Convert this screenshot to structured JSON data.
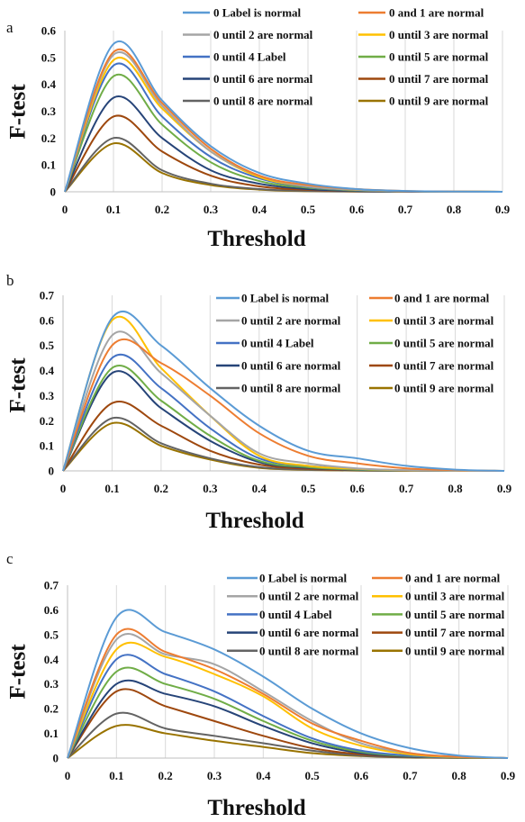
{
  "colors": {
    "s0": "#5b9bd5",
    "s1": "#ed7d31",
    "s2": "#a5a5a5",
    "s3": "#ffc000",
    "s4": "#4472c4",
    "s5": "#70ad47",
    "s6": "#264478",
    "s7": "#9e480e",
    "s8": "#636363",
    "s9": "#997300"
  },
  "chart_data": [
    {
      "type": "line",
      "panel": "a",
      "xlabel": "Threshold",
      "ylabel": "F-test",
      "xlim": [
        0,
        0.9
      ],
      "ylim": [
        0,
        0.6
      ],
      "xticks": [
        "0",
        "0.1",
        "0.2",
        "0.3",
        "0.4",
        "0.5",
        "0.6",
        "0.7",
        "0.8",
        "0.9"
      ],
      "yticks": [
        "0",
        "0.1",
        "0.2",
        "0.3",
        "0.4",
        "0.5",
        "0.6"
      ],
      "grid": "vertical",
      "legend_position": "top",
      "x": [
        0,
        0.1,
        0.2,
        0.3,
        0.4,
        0.5,
        0.6,
        0.7,
        0.8,
        0.9
      ],
      "series": [
        {
          "name": "0 Label is normal",
          "values": [
            0,
            0.55,
            0.34,
            0.17,
            0.07,
            0.03,
            0.01,
            0.003,
            0.001,
            0
          ]
        },
        {
          "name": "0 and 1 are normal",
          "values": [
            0,
            0.52,
            0.33,
            0.16,
            0.06,
            0.025,
            0.01,
            0.003,
            0.001,
            0
          ]
        },
        {
          "name": "0 until 2 are normal",
          "values": [
            0,
            0.51,
            0.32,
            0.15,
            0.06,
            0.02,
            0.008,
            0.002,
            0.001,
            0
          ]
        },
        {
          "name": "0 until 3 are normal",
          "values": [
            0,
            0.49,
            0.31,
            0.15,
            0.055,
            0.02,
            0.007,
            0.002,
            0.001,
            0
          ]
        },
        {
          "name": "0 until 4 Label",
          "values": [
            0,
            0.47,
            0.28,
            0.13,
            0.05,
            0.018,
            0.006,
            0.002,
            0.001,
            0
          ]
        },
        {
          "name": "0 until 5 are normal",
          "values": [
            0,
            0.43,
            0.25,
            0.11,
            0.04,
            0.015,
            0.005,
            0.002,
            0.001,
            0
          ]
        },
        {
          "name": "0 until 6 are normal",
          "values": [
            0,
            0.35,
            0.2,
            0.08,
            0.03,
            0.01,
            0.003,
            0.001,
            0,
            0
          ]
        },
        {
          "name": "0 until 7 are normal",
          "values": [
            0,
            0.28,
            0.15,
            0.06,
            0.02,
            0.007,
            0.002,
            0.001,
            0,
            0
          ]
        },
        {
          "name": "0 until 8 are normal",
          "values": [
            0,
            0.2,
            0.08,
            0.03,
            0.01,
            0.003,
            0.001,
            0,
            0,
            0
          ]
        },
        {
          "name": "0 until 9 are normal",
          "values": [
            0,
            0.18,
            0.07,
            0.025,
            0.008,
            0.002,
            0.001,
            0,
            0,
            0
          ]
        }
      ]
    },
    {
      "type": "line",
      "panel": "b",
      "xlabel": "Threshold",
      "ylabel": "F-test",
      "xlim": [
        0,
        0.9
      ],
      "ylim": [
        0,
        0.7
      ],
      "xticks": [
        "0",
        "0.1",
        "0.2",
        "0.3",
        "0.4",
        "0.5",
        "0.6",
        "0.7",
        "0.8",
        "0.9"
      ],
      "yticks": [
        "0",
        "0.1",
        "0.2",
        "0.3",
        "0.4",
        "0.5",
        "0.6",
        "0.7"
      ],
      "grid": "vertical",
      "legend_position": "right",
      "x": [
        0,
        0.1,
        0.2,
        0.3,
        0.4,
        0.5,
        0.6,
        0.7,
        0.8,
        0.9
      ],
      "series": [
        {
          "name": "0 Label is normal",
          "values": [
            0,
            0.61,
            0.5,
            0.33,
            0.18,
            0.08,
            0.05,
            0.02,
            0.005,
            0
          ]
        },
        {
          "name": "0 and 1 are normal",
          "values": [
            0,
            0.5,
            0.43,
            0.3,
            0.15,
            0.06,
            0.03,
            0.01,
            0.003,
            0
          ]
        },
        {
          "name": "0 until 2 are normal",
          "values": [
            0,
            0.54,
            0.39,
            0.22,
            0.07,
            0.03,
            0.01,
            0.003,
            0.001,
            0
          ]
        },
        {
          "name": "0 until 3 are normal",
          "values": [
            0,
            0.6,
            0.41,
            0.22,
            0.06,
            0.02,
            0.008,
            0.002,
            0.001,
            0
          ]
        },
        {
          "name": "0 until 4 Label",
          "values": [
            0,
            0.45,
            0.33,
            0.17,
            0.05,
            0.02,
            0.007,
            0.002,
            0.001,
            0
          ]
        },
        {
          "name": "0 until 5 are normal",
          "values": [
            0,
            0.41,
            0.28,
            0.14,
            0.04,
            0.015,
            0.005,
            0.002,
            0.001,
            0
          ]
        },
        {
          "name": "0 until 6 are normal",
          "values": [
            0,
            0.39,
            0.25,
            0.12,
            0.035,
            0.012,
            0.004,
            0.001,
            0,
            0
          ]
        },
        {
          "name": "0 until 7 are normal",
          "values": [
            0,
            0.27,
            0.18,
            0.08,
            0.025,
            0.008,
            0.003,
            0.001,
            0,
            0
          ]
        },
        {
          "name": "0 until 8 are normal",
          "values": [
            0,
            0.21,
            0.11,
            0.05,
            0.015,
            0.005,
            0.002,
            0,
            0,
            0
          ]
        },
        {
          "name": "0 until 9 are normal",
          "values": [
            0,
            0.19,
            0.1,
            0.045,
            0.012,
            0.004,
            0.001,
            0,
            0,
            0
          ]
        }
      ]
    },
    {
      "type": "line",
      "panel": "c",
      "xlabel": "Threshold",
      "ylabel": "F-test",
      "xlim": [
        0,
        0.9
      ],
      "ylim": [
        0,
        0.7
      ],
      "xticks": [
        "0",
        "0.1",
        "0.2",
        "0.3",
        "0.4",
        "0.5",
        "0.6",
        "0.7",
        "0.8",
        "0.9"
      ],
      "yticks": [
        "0",
        "0.1",
        "0.2",
        "0.3",
        "0.4",
        "0.5",
        "0.6",
        "0.7"
      ],
      "grid": "vertical",
      "legend_position": "top-right",
      "x": [
        0,
        0.1,
        0.2,
        0.3,
        0.4,
        0.5,
        0.6,
        0.7,
        0.8,
        0.9
      ],
      "series": [
        {
          "name": "0 Label is normal",
          "values": [
            0,
            0.57,
            0.51,
            0.44,
            0.33,
            0.2,
            0.1,
            0.04,
            0.01,
            0
          ]
        },
        {
          "name": "0 and 1 are normal",
          "values": [
            0,
            0.5,
            0.43,
            0.36,
            0.26,
            0.14,
            0.07,
            0.02,
            0.005,
            0
          ]
        },
        {
          "name": "0 until 2 are normal",
          "values": [
            0,
            0.48,
            0.42,
            0.38,
            0.27,
            0.15,
            0.06,
            0.02,
            0.005,
            0
          ]
        },
        {
          "name": "0 until 3 are normal",
          "values": [
            0,
            0.44,
            0.41,
            0.34,
            0.25,
            0.12,
            0.05,
            0.015,
            0.004,
            0
          ]
        },
        {
          "name": "0 until 4 Label",
          "values": [
            0,
            0.4,
            0.34,
            0.27,
            0.17,
            0.08,
            0.03,
            0.01,
            0.003,
            0
          ]
        },
        {
          "name": "0 until 5 are normal",
          "values": [
            0,
            0.35,
            0.3,
            0.24,
            0.15,
            0.07,
            0.025,
            0.008,
            0.002,
            0
          ]
        },
        {
          "name": "0 until 6 are normal",
          "values": [
            0,
            0.3,
            0.26,
            0.21,
            0.13,
            0.06,
            0.02,
            0.006,
            0.002,
            0
          ]
        },
        {
          "name": "0 until 7 are normal",
          "values": [
            0,
            0.27,
            0.21,
            0.15,
            0.09,
            0.04,
            0.015,
            0.005,
            0.001,
            0
          ]
        },
        {
          "name": "0 until 8 are normal",
          "values": [
            0,
            0.18,
            0.12,
            0.09,
            0.06,
            0.03,
            0.01,
            0.003,
            0.001,
            0
          ]
        },
        {
          "name": "0 until 9 are normal",
          "values": [
            0,
            0.13,
            0.1,
            0.07,
            0.045,
            0.02,
            0.008,
            0.002,
            0.001,
            0
          ]
        }
      ]
    }
  ]
}
